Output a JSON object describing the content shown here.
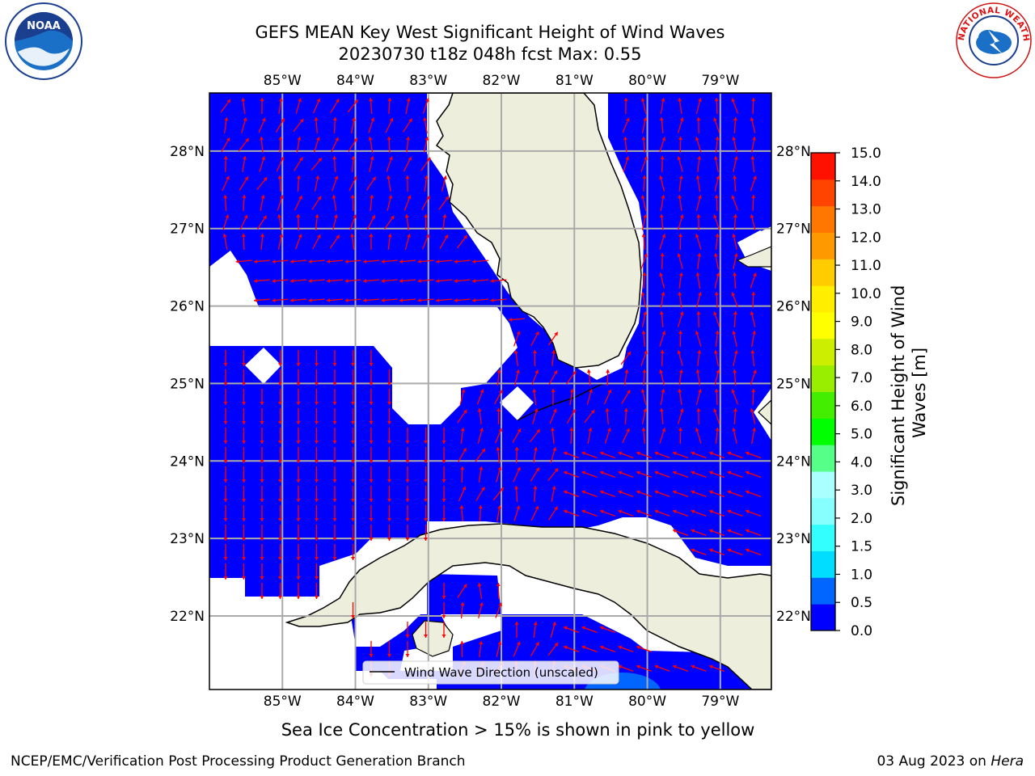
{
  "title_line1": "GEFS MEAN Key West Significant Height of Wind Waves",
  "title_line2": "20230730 t18z 048h fcst   Max: 0.55",
  "logos": {
    "left": "noaa-logo",
    "right": "nws-logo",
    "nws_text": "NATIONAL WEATHER SERVICE"
  },
  "map": {
    "lon_labels": [
      "85°W",
      "84°W",
      "83°W",
      "82°W",
      "81°W",
      "80°W",
      "79°W"
    ],
    "lon_values": [
      -85,
      -84,
      -83,
      -82,
      -81,
      -80,
      -79
    ],
    "lat_labels": [
      "28°N",
      "27°N",
      "26°N",
      "25°N",
      "24°N",
      "23°N",
      "22°N"
    ],
    "lat_values": [
      28,
      27,
      26,
      25,
      24,
      23,
      22
    ],
    "lon_range": [
      -86.0,
      -78.3
    ],
    "lat_range": [
      21.05,
      28.75
    ],
    "water_color": "#0000ff",
    "land_color": "#eeeedd",
    "arrow_color": "#ff0000",
    "legend_label": "Wind Wave Direction (unscaled)"
  },
  "colorbar": {
    "label": "Significant Height of Wind Waves [m]",
    "label_line1": "Significant Height of Wind",
    "label_line2": "Waves [m]",
    "ticks": [
      "0.0",
      "0.5",
      "1.0",
      "1.5",
      "2.0",
      "3.0",
      "4.0",
      "5.0",
      "6.0",
      "7.0",
      "8.0",
      "9.0",
      "10.0",
      "11.0",
      "12.0",
      "13.0",
      "14.0",
      "15.0"
    ],
    "colors": [
      "#0000ff",
      "#0066ff",
      "#00ddff",
      "#33ffff",
      "#88ffff",
      "#aaffff",
      "#55ff88",
      "#00ff00",
      "#44ee00",
      "#99ee00",
      "#ccee00",
      "#ffff00",
      "#ffee00",
      "#ffcc00",
      "#ff9900",
      "#ff7700",
      "#ff4400",
      "#ff1100"
    ]
  },
  "note": "Sea Ice Concentration > 15% is shown in pink to yellow",
  "footer_left": "NCEP/EMC/Verification Post Processing Product Generation Branch",
  "footer_right_prefix": "03 Aug 2023 on ",
  "footer_right_machine": "Hera"
}
